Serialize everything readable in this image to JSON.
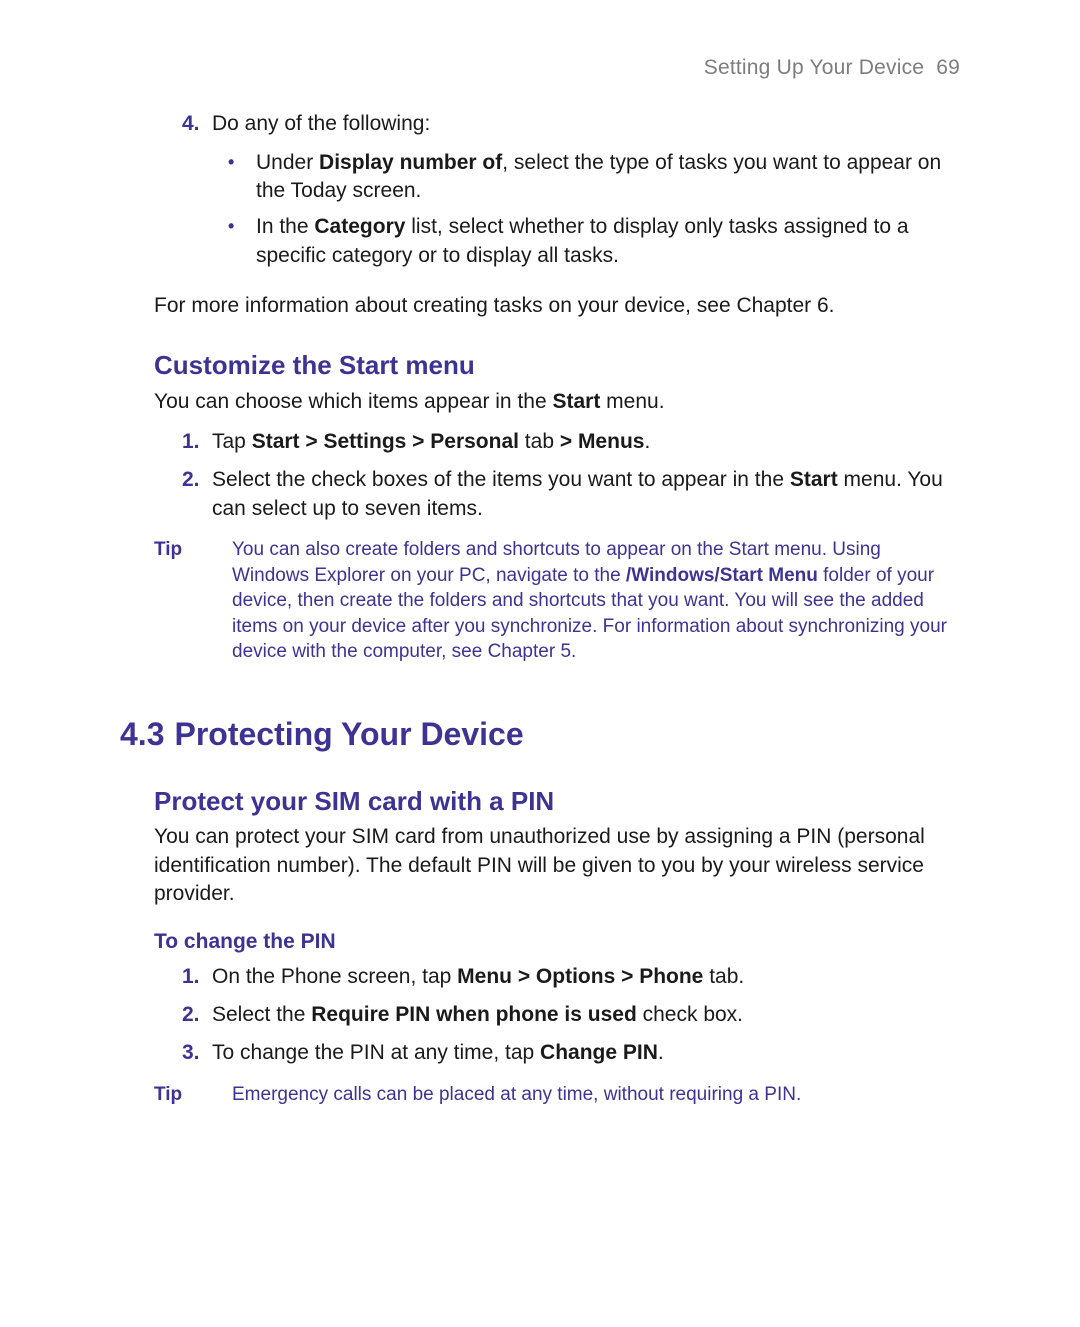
{
  "colors": {
    "accent": "#3d3393",
    "body_text": "#1a1a1a",
    "muted": "#7d7d7d",
    "background": "#ffffff"
  },
  "typography": {
    "body_size_pt": 16,
    "h2_size_pt": 24,
    "h3_size_pt": 19,
    "tip_size_pt": 14,
    "font_family": "Myriad Pro / Segoe UI / sans-serif"
  },
  "header": {
    "chapter_title": "Setting Up Your Device",
    "page_number": "69"
  },
  "step4": {
    "number": "4.",
    "text": "Do any of the following:",
    "bullets": [
      {
        "pre": "Under ",
        "bold": "Display number of",
        "post": ", select the type of tasks you want to appear on the Today screen."
      },
      {
        "pre": "In the ",
        "bold": "Category",
        "post": " list, select whether to display only tasks assigned to a specific category or to display all tasks."
      }
    ]
  },
  "more_info": "For more information about creating tasks on your device, see Chapter 6.",
  "customize": {
    "heading": "Customize the Start menu",
    "intro_pre": "You can choose which items appear in the ",
    "intro_bold": "Start",
    "intro_post": " menu.",
    "steps": [
      {
        "number": "1.",
        "parts": [
          {
            "t": "Tap "
          },
          {
            "t": "Start > Settings > Personal",
            "b": true
          },
          {
            "t": " tab "
          },
          {
            "t": "> Menus",
            "b": true
          },
          {
            "t": "."
          }
        ]
      },
      {
        "number": "2.",
        "parts": [
          {
            "t": "Select the check boxes of the items you want to appear in the "
          },
          {
            "t": "Start",
            "b": true
          },
          {
            "t": " menu. You can select up to seven items."
          }
        ]
      }
    ],
    "tip_label": "Tip",
    "tip_parts": [
      {
        "t": "You can also create folders and shortcuts to appear on the Start menu. Using Windows Explorer on your PC, navigate to the "
      },
      {
        "t": "/Windows/Start Menu",
        "b": true
      },
      {
        "t": " folder of your device, then create the folders and shortcuts that you want. You will see the added items on your device after you synchronize. For information about synchronizing your device with the computer, see Chapter 5."
      }
    ]
  },
  "section43": {
    "number": "4.3",
    "title": "Protecting Your Device",
    "sim": {
      "heading": "Protect your SIM card with a PIN",
      "intro": "You can protect your SIM card from unauthorized use by assigning a PIN (personal identification number). The default PIN will be given to you by your wireless service provider.",
      "sub_heading": "To change the PIN",
      "steps": [
        {
          "number": "1.",
          "parts": [
            {
              "t": "On the Phone screen, tap "
            },
            {
              "t": "Menu > Options > Phone",
              "b": true
            },
            {
              "t": " tab."
            }
          ]
        },
        {
          "number": "2.",
          "parts": [
            {
              "t": "Select the "
            },
            {
              "t": "Require PIN when phone is used",
              "b": true
            },
            {
              "t": " check box."
            }
          ]
        },
        {
          "number": "3.",
          "parts": [
            {
              "t": "To change the PIN at any time, tap "
            },
            {
              "t": "Change PIN",
              "b": true
            },
            {
              "t": "."
            }
          ]
        }
      ],
      "tip_label": "Tip",
      "tip_text": "Emergency calls can be placed at any time, without requiring a PIN."
    }
  }
}
